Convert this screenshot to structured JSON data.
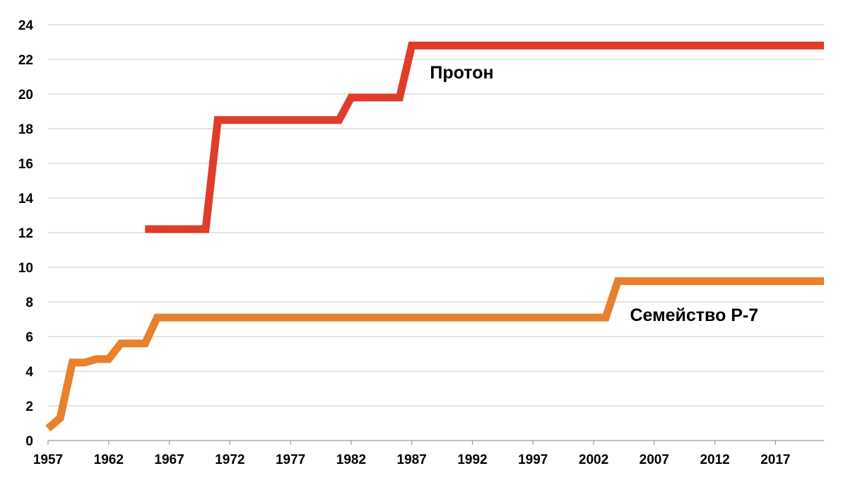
{
  "chart_data": {
    "type": "line",
    "title": "",
    "xlabel": "",
    "ylabel": "",
    "xlim": [
      1957,
      2021
    ],
    "ylim": [
      0,
      24
    ],
    "y_ticks": [
      "0",
      "2",
      "4",
      "6",
      "8",
      "10",
      "12",
      "14",
      "16",
      "18",
      "20",
      "22",
      "24"
    ],
    "x_ticks": [
      "1957",
      "1962",
      "1967",
      "1972",
      "1977",
      "1982",
      "1987",
      "1992",
      "1997",
      "2002",
      "2007",
      "2012",
      "2017"
    ],
    "grid": "horizontal",
    "legend": "none",
    "series": [
      {
        "name": "Протон",
        "color": "#e03c2a",
        "points": [
          [
            1965,
            12.2
          ],
          [
            1970,
            12.2
          ],
          [
            1971,
            18.5
          ],
          [
            1981,
            18.5
          ],
          [
            1982,
            19.8
          ],
          [
            1986,
            19.8
          ],
          [
            1987,
            22.8
          ],
          [
            2021,
            22.8
          ]
        ]
      },
      {
        "name": "Семейство Р-7",
        "color": "#e8802e",
        "points": [
          [
            1957,
            0.7
          ],
          [
            1958,
            1.3
          ],
          [
            1959,
            4.5
          ],
          [
            1960,
            4.5
          ],
          [
            1961,
            4.7
          ],
          [
            1962,
            4.7
          ],
          [
            1963,
            5.6
          ],
          [
            1965,
            5.6
          ],
          [
            1966,
            7.1
          ],
          [
            2003,
            7.1
          ],
          [
            2004,
            9.2
          ],
          [
            2021,
            9.2
          ]
        ]
      }
    ],
    "annotations": [
      {
        "text": "Протон",
        "x": 1988.5,
        "y": 20.9
      },
      {
        "text": "Семейство Р-7",
        "x": 2005,
        "y": 6.9
      }
    ]
  }
}
